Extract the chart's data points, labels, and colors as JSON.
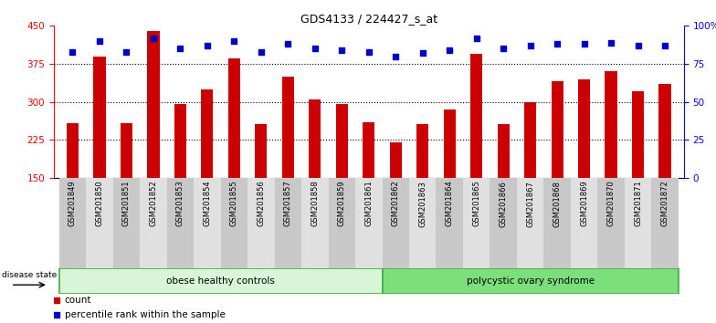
{
  "title": "GDS4133 / 224427_s_at",
  "samples": [
    "GSM201849",
    "GSM201850",
    "GSM201851",
    "GSM201852",
    "GSM201853",
    "GSM201854",
    "GSM201855",
    "GSM201856",
    "GSM201857",
    "GSM201858",
    "GSM201859",
    "GSM201861",
    "GSM201862",
    "GSM201863",
    "GSM201864",
    "GSM201865",
    "GSM201866",
    "GSM201867",
    "GSM201868",
    "GSM201869",
    "GSM201870",
    "GSM201871",
    "GSM201872"
  ],
  "counts": [
    257,
    390,
    257,
    440,
    295,
    325,
    385,
    255,
    350,
    305,
    295,
    260,
    220,
    255,
    285,
    395,
    255,
    300,
    340,
    345,
    360,
    320,
    335
  ],
  "percentiles": [
    83,
    90,
    83,
    92,
    85,
    87,
    90,
    83,
    88,
    85,
    84,
    83,
    80,
    82,
    84,
    92,
    85,
    87,
    88,
    88,
    89,
    87,
    87
  ],
  "group1_count": 12,
  "group1_label": "obese healthy controls",
  "group2_label": "polycystic ovary syndrome",
  "group1_color": "#d8f5d8",
  "group2_color": "#7be07b",
  "bar_color": "#cc0000",
  "dot_color": "#0000cc",
  "ylim_left": [
    150,
    450
  ],
  "ylim_right": [
    0,
    100
  ],
  "yticks_left": [
    150,
    225,
    300,
    375,
    450
  ],
  "yticks_right": [
    0,
    25,
    50,
    75,
    100
  ],
  "yticklabels_right": [
    "0",
    "25",
    "50",
    "75",
    "100%"
  ],
  "grid_lines": [
    225,
    300,
    375
  ],
  "background_color": "#ffffff",
  "legend_count_label": "count",
  "legend_pct_label": "percentile rank within the sample"
}
